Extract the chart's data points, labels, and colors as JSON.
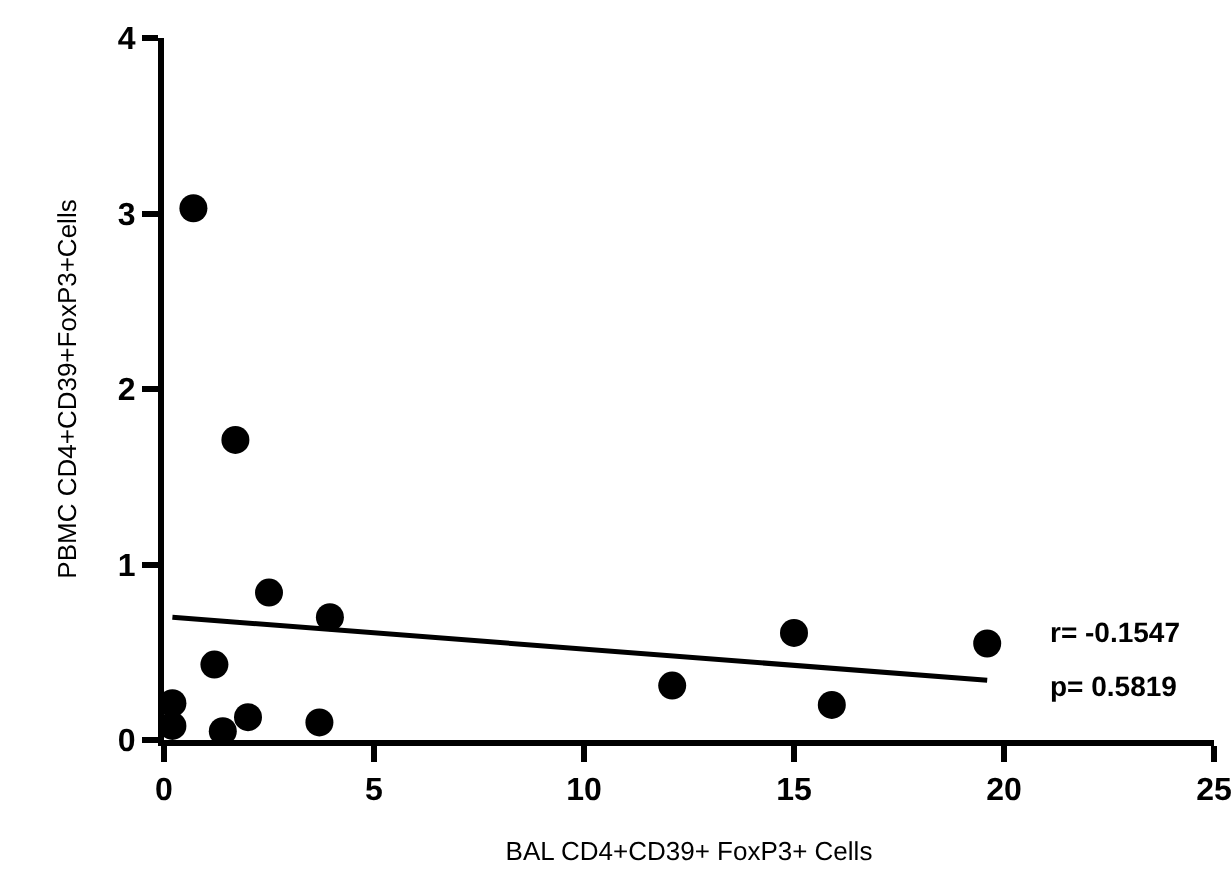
{
  "chart_data": {
    "type": "scatter",
    "xlabel": "BAL CD4+CD39+ FoxP3+ Cells",
    "ylabel": "PBMC CD4+CD39+FoxP3+Cells",
    "xlim": [
      0,
      25
    ],
    "ylim": [
      0,
      4
    ],
    "xticks": [
      0,
      5,
      10,
      15,
      20,
      25
    ],
    "yticks": [
      0,
      1,
      2,
      3,
      4
    ],
    "grid": false,
    "legend": false,
    "series": [
      {
        "type": "scatter",
        "marker": "circle",
        "color": "#000000",
        "x": [
          0.2,
          0.2,
          0.7,
          1.7,
          1.2,
          1.4,
          2.0,
          2.5,
          3.7,
          3.95,
          12.1,
          15.0,
          15.9,
          19.6
        ],
        "values": [
          0.21,
          0.08,
          3.03,
          1.71,
          0.43,
          0.05,
          0.13,
          0.84,
          0.1,
          0.7,
          0.31,
          0.61,
          0.2,
          0.55
        ]
      },
      {
        "type": "line",
        "color": "#000000",
        "line_style": "solid",
        "x": [
          0.2,
          19.6
        ],
        "values": [
          0.7,
          0.34
        ]
      }
    ],
    "annotations": [
      "r= -0.1547",
      "p= 0.5819"
    ]
  }
}
